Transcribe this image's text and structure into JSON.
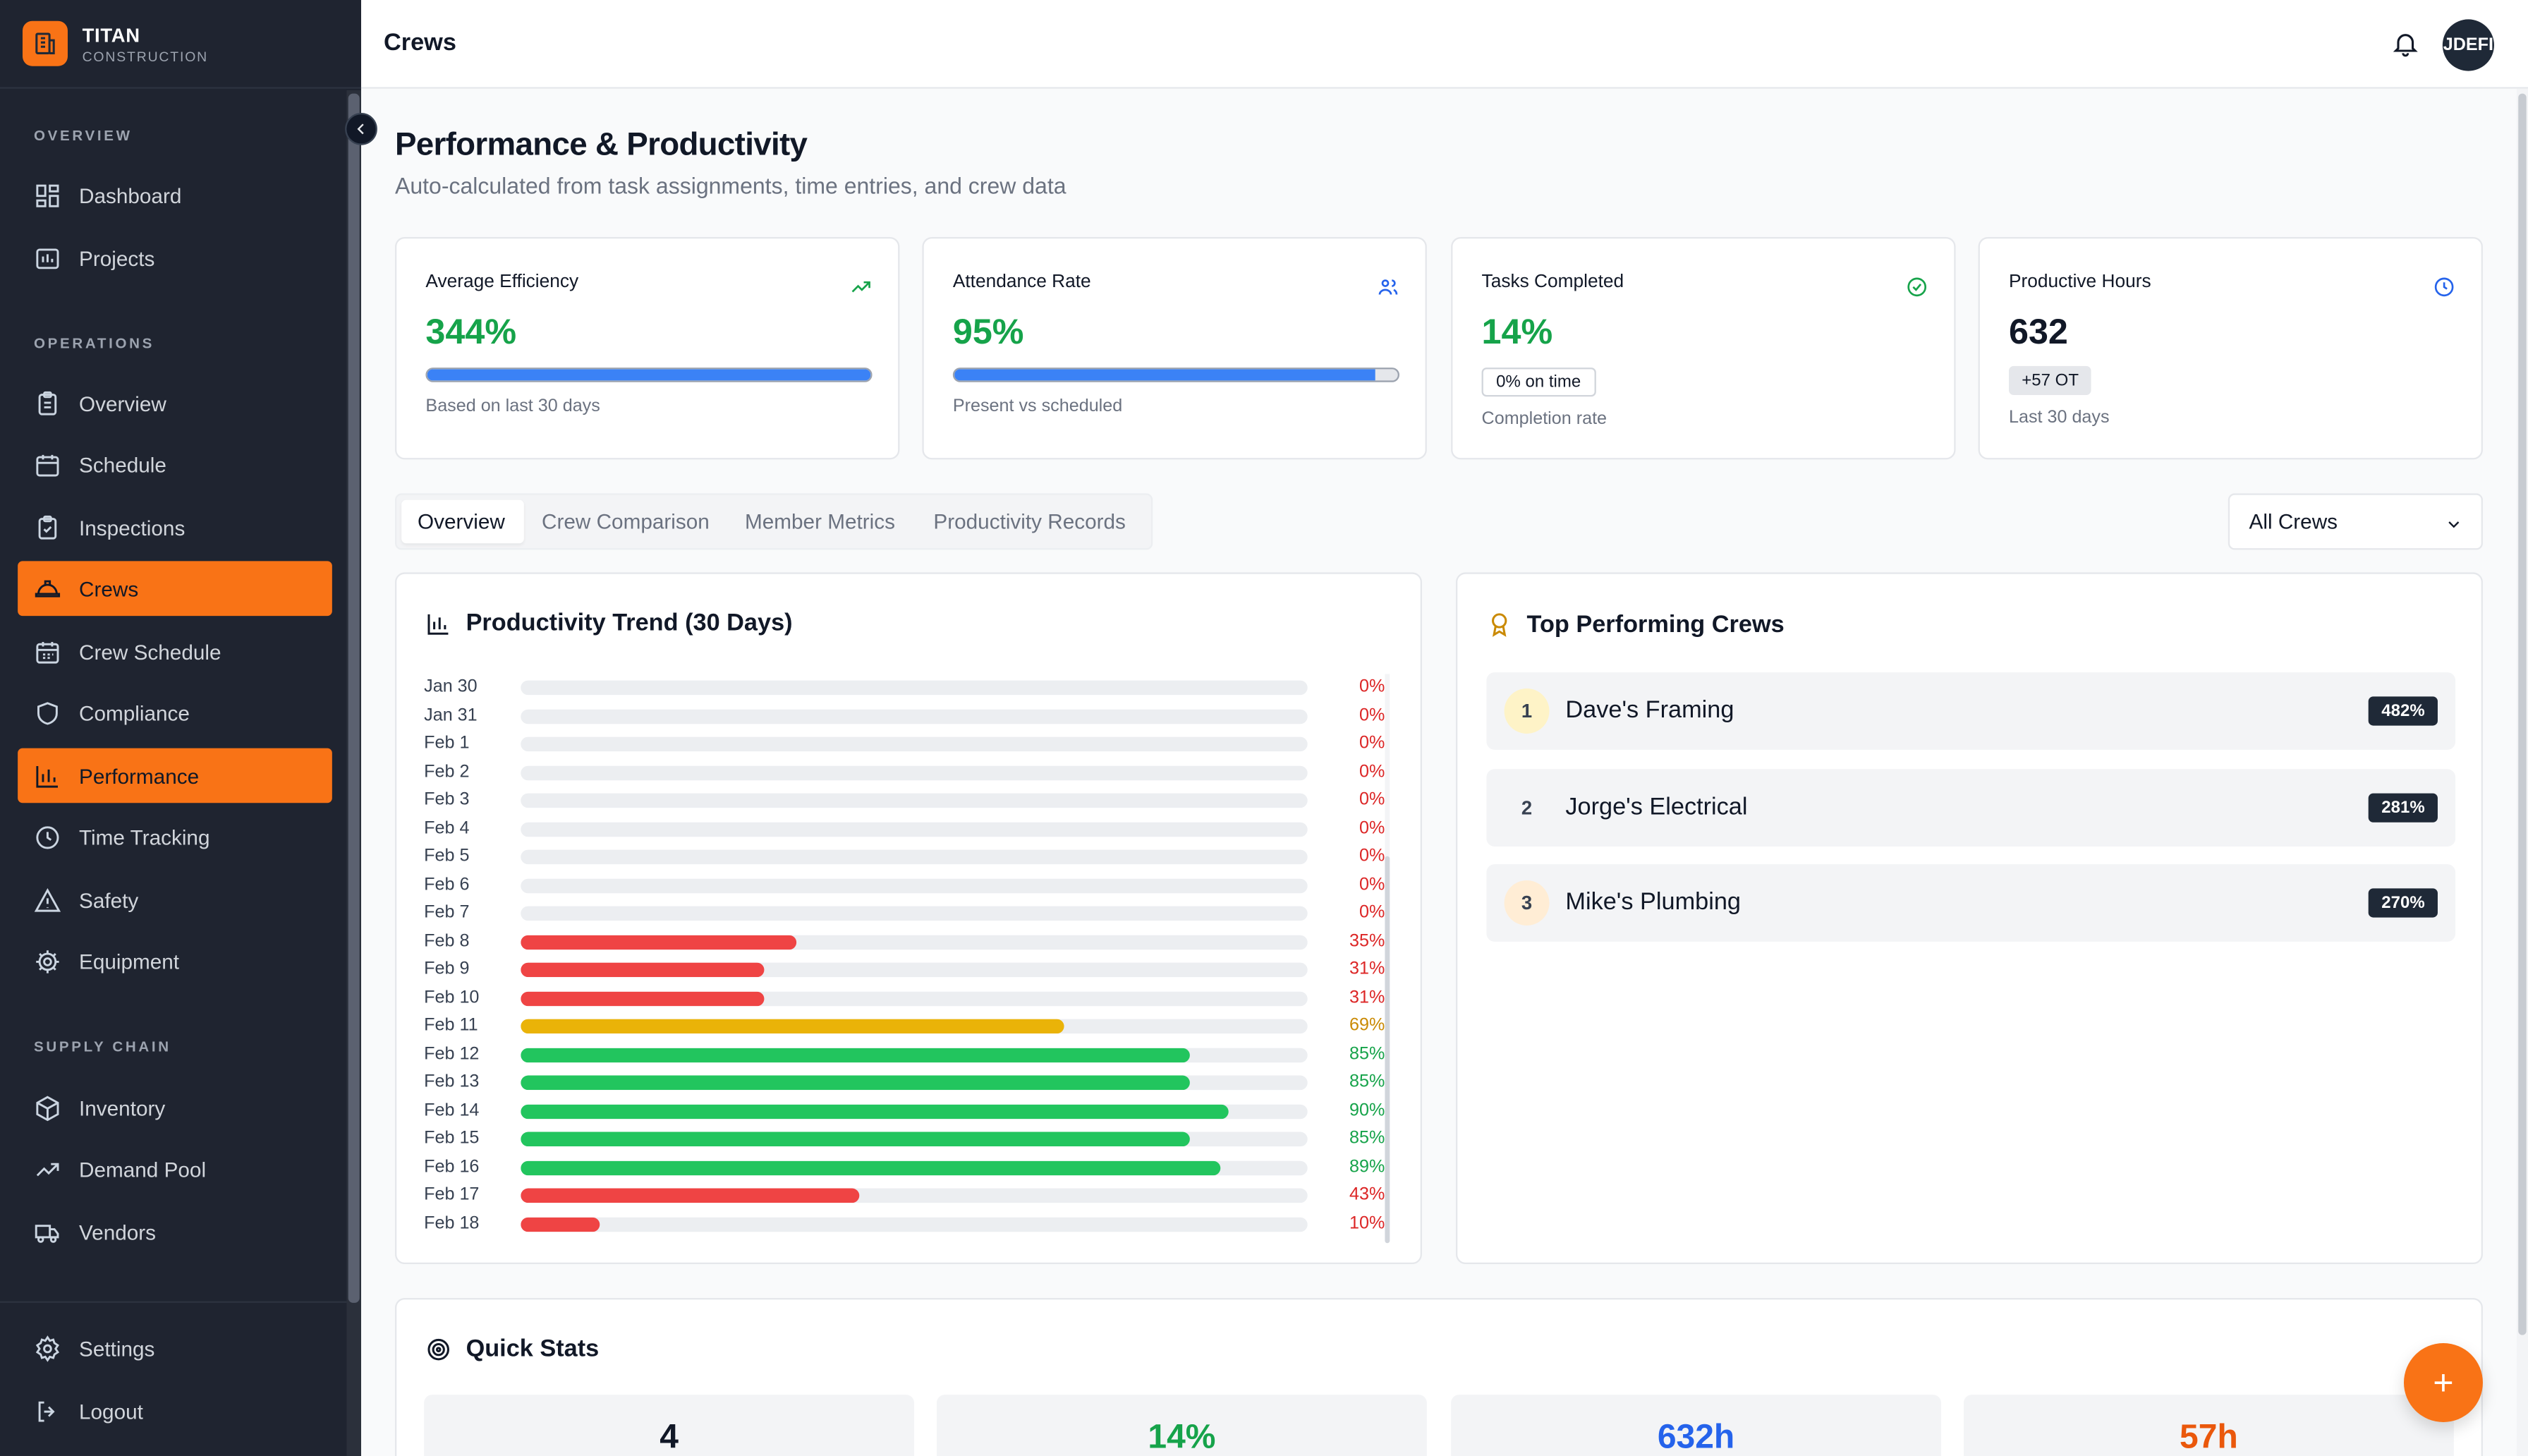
{
  "brand": {
    "name": "TITAN",
    "sub": "CONSTRUCTION"
  },
  "sidebar": {
    "sections": {
      "overview": "OVERVIEW",
      "operations": "OPERATIONS",
      "supply_chain": "SUPPLY CHAIN"
    },
    "items": {
      "dashboard": "Dashboard",
      "projects": "Projects",
      "overview": "Overview",
      "schedule": "Schedule",
      "inspections": "Inspections",
      "crews": "Crews",
      "crew_schedule": "Crew Schedule",
      "compliance": "Compliance",
      "performance": "Performance",
      "time_tracking": "Time Tracking",
      "safety": "Safety",
      "equipment": "Equipment",
      "inventory": "Inventory",
      "demand_pool": "Demand Pool",
      "vendors": "Vendors",
      "settings": "Settings",
      "logout": "Logout"
    }
  },
  "topbar": {
    "title": "Crews",
    "avatar": "JDEFI"
  },
  "header": {
    "title": "Performance & Productivity",
    "subtitle": "Auto-calculated from task assignments, time entries, and crew data"
  },
  "stats": {
    "efficiency": {
      "label": "Average Efficiency",
      "value": "344%",
      "progress": 1.0,
      "note": "Based on last 30 days",
      "color": "#16a34a"
    },
    "attendance": {
      "label": "Attendance Rate",
      "value": "95%",
      "progress": 0.95,
      "note": "Present vs scheduled",
      "color": "#16a34a"
    },
    "tasks": {
      "label": "Tasks Completed",
      "value": "14%",
      "chip": "0% on time",
      "note": "Completion rate",
      "color": "#16a34a"
    },
    "hours": {
      "label": "Productive Hours",
      "value": "632",
      "chip": "+57 OT",
      "note": "Last 30 days",
      "color": "#111827"
    }
  },
  "tabs": {
    "overview": "Overview",
    "crew_comparison": "Crew Comparison",
    "member_metrics": "Member Metrics",
    "productivity_records": "Productivity Records"
  },
  "filter": {
    "selected": "All Crews"
  },
  "trend": {
    "title": "Productivity Trend (30 Days)",
    "colors": {
      "low": "#ef4444",
      "mid": "#eab308",
      "high": "#22c55e"
    },
    "text_colors": {
      "low": "#dc2626",
      "mid": "#ca8a04",
      "high": "#16a34a"
    },
    "rows": [
      {
        "date": "Jan 30",
        "value": 0,
        "label": "0%"
      },
      {
        "date": "Jan 31",
        "value": 0,
        "label": "0%"
      },
      {
        "date": "Feb 1",
        "value": 0,
        "label": "0%"
      },
      {
        "date": "Feb 2",
        "value": 0,
        "label": "0%"
      },
      {
        "date": "Feb 3",
        "value": 0,
        "label": "0%"
      },
      {
        "date": "Feb 4",
        "value": 0,
        "label": "0%"
      },
      {
        "date": "Feb 5",
        "value": 0,
        "label": "0%"
      },
      {
        "date": "Feb 6",
        "value": 0,
        "label": "0%"
      },
      {
        "date": "Feb 7",
        "value": 0,
        "label": "0%"
      },
      {
        "date": "Feb 8",
        "value": 35,
        "label": "35%"
      },
      {
        "date": "Feb 9",
        "value": 31,
        "label": "31%"
      },
      {
        "date": "Feb 10",
        "value": 31,
        "label": "31%"
      },
      {
        "date": "Feb 11",
        "value": 69,
        "label": "69%"
      },
      {
        "date": "Feb 12",
        "value": 85,
        "label": "85%"
      },
      {
        "date": "Feb 13",
        "value": 85,
        "label": "85%"
      },
      {
        "date": "Feb 14",
        "value": 90,
        "label": "90%"
      },
      {
        "date": "Feb 15",
        "value": 85,
        "label": "85%"
      },
      {
        "date": "Feb 16",
        "value": 89,
        "label": "89%"
      },
      {
        "date": "Feb 17",
        "value": 43,
        "label": "43%"
      },
      {
        "date": "Feb 18",
        "value": 10,
        "label": "10%"
      }
    ]
  },
  "top_crews": {
    "title": "Top Performing Crews",
    "crews": [
      {
        "rank": "1",
        "name": "Dave's Framing",
        "score": "482%",
        "rank_bg": "#fef3c7"
      },
      {
        "rank": "2",
        "name": "Jorge's Electrical",
        "score": "281%",
        "rank_bg": "#f3f4f6"
      },
      {
        "rank": "3",
        "name": "Mike's Plumbing",
        "score": "270%",
        "rank_bg": "#ffedd5"
      }
    ]
  },
  "quick_stats": {
    "title": "Quick Stats",
    "values": [
      {
        "value": "4",
        "color": "#111827"
      },
      {
        "value": "14%",
        "color": "#16a34a"
      },
      {
        "value": "632h",
        "color": "#2563eb"
      },
      {
        "value": "57h",
        "color": "#ea580c"
      }
    ]
  },
  "fab": {
    "label": "+"
  }
}
